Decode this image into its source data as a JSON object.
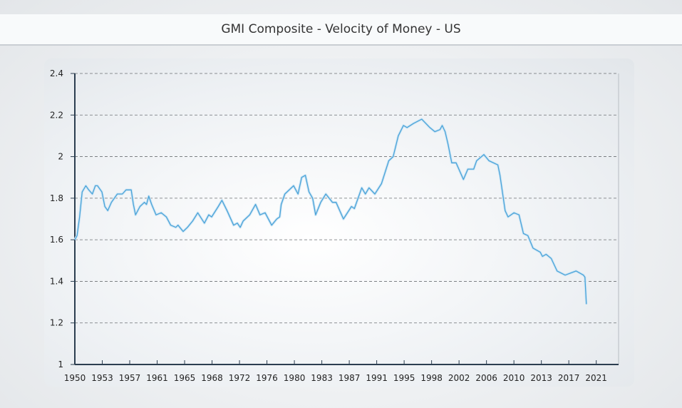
{
  "chart_data": {
    "type": "line",
    "title": "GMI Composite - Velocity of Money - US",
    "xlabel": "",
    "ylabel": "",
    "xlim": [
      1950,
      2024.3
    ],
    "ylim": [
      1,
      2.4
    ],
    "grid": "horizontal dashed",
    "line_color": "#4aa3d8",
    "y_ticks": [
      "1",
      "1.2",
      "1.4",
      "1.6",
      "1.8",
      "2",
      "2.2",
      "2.4"
    ],
    "x_ticks": [
      "1950",
      "1953",
      "1957",
      "1961",
      "1965",
      "1968",
      "1972",
      "1976",
      "1980",
      "1983",
      "1987",
      "1991",
      "1995",
      "1998",
      "2002",
      "2006",
      "2010",
      "2013",
      "2017",
      "2021"
    ],
    "x": [
      1950.0,
      1950.3,
      1950.65,
      1951.0,
      1951.5,
      1951.9,
      1952.4,
      1952.8,
      1953.1,
      1953.7,
      1954.1,
      1954.5,
      1955.0,
      1955.8,
      1956.5,
      1957.0,
      1957.5,
      1957.7,
      1958.0,
      1958.3,
      1958.9,
      1959.5,
      1959.8,
      1960.1,
      1960.5,
      1961.1,
      1961.8,
      1962.5,
      1963.1,
      1963.8,
      1964.1,
      1964.8,
      1965.4,
      1966.1,
      1966.8,
      1967.7,
      1968.3,
      1968.7,
      1969.6,
      1970.1,
      1970.8,
      1971.7,
      1972.2,
      1972.6,
      1973.0,
      1973.9,
      1974.7,
      1975.3,
      1976.0,
      1976.9,
      1977.6,
      1978.0,
      1978.2,
      1978.7,
      1979.9,
      1980.5,
      1981.0,
      1981.5,
      1982.0,
      1982.5,
      1982.9,
      1983.6,
      1984.3,
      1985.2,
      1985.7,
      1986.7,
      1987.8,
      1988.2,
      1989.2,
      1989.7,
      1990.2,
      1991.0,
      1991.9,
      1992.9,
      1993.5,
      1994.2,
      1994.9,
      1995.4,
      1996.3,
      1997.4,
      1998.5,
      1999.2,
      1999.9,
      2000.2,
      2000.6,
      2001.0,
      2001.5,
      2002.1,
      2003.1,
      2003.7,
      2004.5,
      2004.9,
      2005.9,
      2006.6,
      2007.8,
      2008.1,
      2008.8,
      2009.2,
      2010.0,
      2010.7,
      2011.3,
      2011.9,
      2012.6,
      2013.6,
      2013.9,
      2014.4,
      2015.1,
      2015.9,
      2017.0,
      2018.5,
      2019.5,
      2019.7,
      2019.9
    ],
    "values": [
      1.6,
      1.62,
      1.71,
      1.83,
      1.86,
      1.84,
      1.82,
      1.86,
      1.86,
      1.83,
      1.76,
      1.74,
      1.78,
      1.82,
      1.82,
      1.84,
      1.84,
      1.84,
      1.77,
      1.72,
      1.76,
      1.78,
      1.77,
      1.81,
      1.77,
      1.72,
      1.73,
      1.71,
      1.67,
      1.66,
      1.67,
      1.64,
      1.66,
      1.69,
      1.73,
      1.68,
      1.72,
      1.71,
      1.76,
      1.79,
      1.74,
      1.67,
      1.68,
      1.66,
      1.69,
      1.72,
      1.77,
      1.72,
      1.73,
      1.67,
      1.7,
      1.71,
      1.77,
      1.82,
      1.86,
      1.82,
      1.9,
      1.91,
      1.83,
      1.8,
      1.72,
      1.78,
      1.82,
      1.78,
      1.78,
      1.7,
      1.76,
      1.75,
      1.85,
      1.82,
      1.85,
      1.82,
      1.87,
      1.98,
      2.0,
      2.1,
      2.15,
      2.14,
      2.16,
      2.18,
      2.14,
      2.12,
      2.13,
      2.15,
      2.12,
      2.06,
      1.97,
      1.97,
      1.89,
      1.94,
      1.94,
      1.98,
      2.01,
      1.98,
      1.96,
      1.91,
      1.74,
      1.71,
      1.73,
      1.72,
      1.63,
      1.62,
      1.56,
      1.54,
      1.52,
      1.53,
      1.51,
      1.45,
      1.43,
      1.45,
      1.43,
      1.42,
      1.29
    ]
  }
}
